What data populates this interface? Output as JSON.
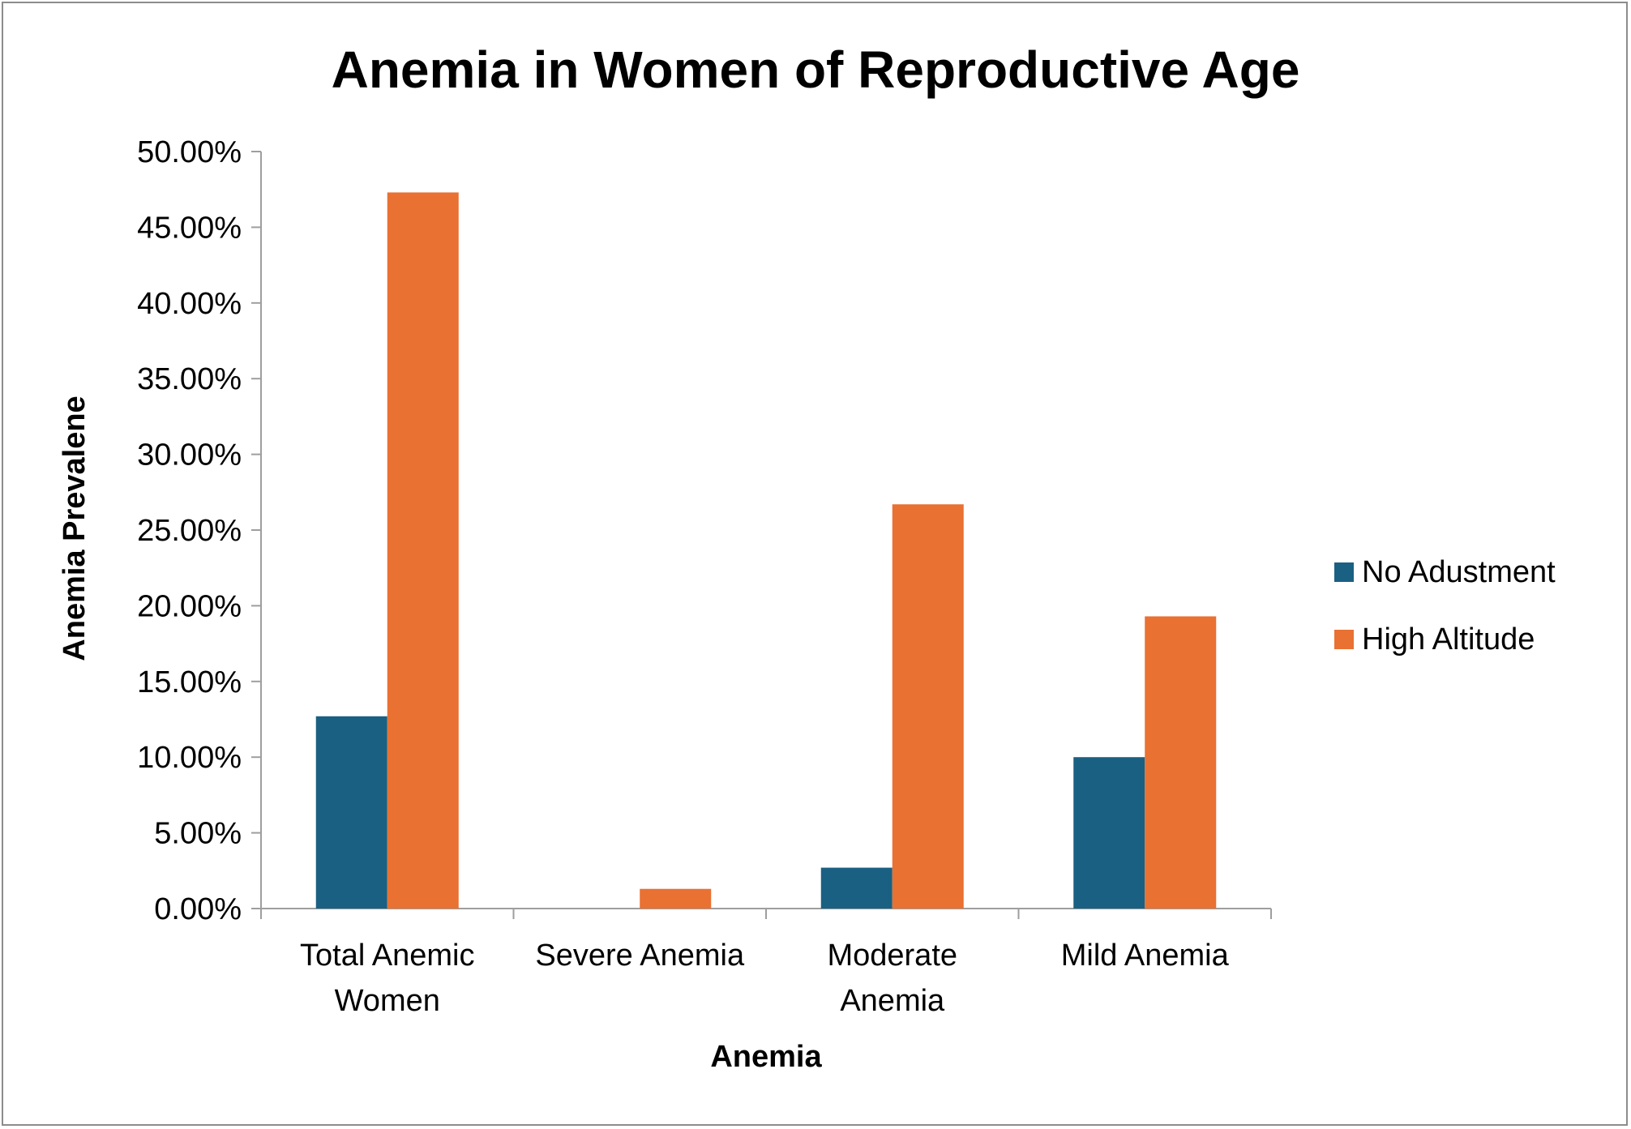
{
  "chart_data": {
    "type": "bar",
    "title": "Anemia in Women of Reproductive Age",
    "xlabel": "Anemia",
    "ylabel": "Anemia Prevalene",
    "categories": [
      [
        "Total Anemic",
        "Women"
      ],
      [
        "Severe Anemia"
      ],
      [
        "Moderate",
        "Anemia"
      ],
      [
        "Mild Anemia"
      ]
    ],
    "series": [
      {
        "name": "No Adustment",
        "color": "#1a6082",
        "values": [
          12.7,
          0,
          2.7,
          10.0
        ]
      },
      {
        "name": "High Altitude",
        "color": "#e97132",
        "values": [
          47.3,
          1.3,
          26.7,
          19.3
        ]
      }
    ],
    "ylim": [
      0,
      50
    ],
    "yticks": [
      0,
      5,
      10,
      15,
      20,
      25,
      30,
      35,
      40,
      45,
      50
    ],
    "ytick_labels": [
      "0.00%",
      "5.00%",
      "10.00%",
      "15.00%",
      "20.00%",
      "25.00%",
      "30.00%",
      "35.00%",
      "40.00%",
      "45.00%",
      "50.00%"
    ],
    "grid": false,
    "legend": "right"
  }
}
